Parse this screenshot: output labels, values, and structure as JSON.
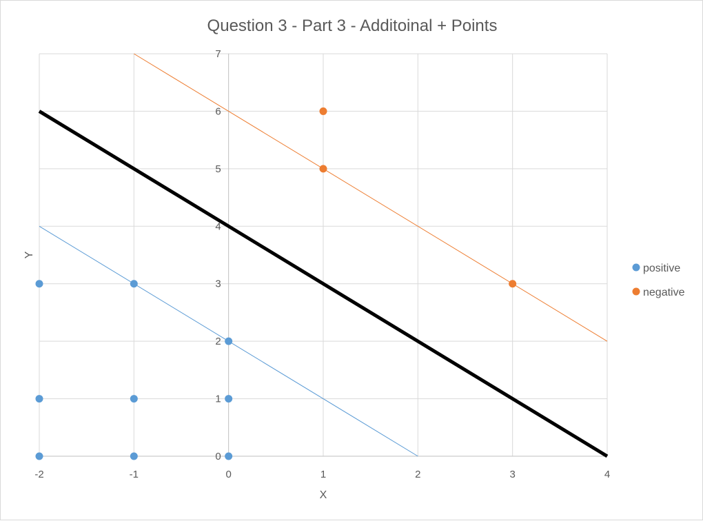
{
  "chart_data": {
    "type": "scatter",
    "title": "Question 3 - Part 3 - Additoinal + Points",
    "xlabel": "X",
    "ylabel": "Y",
    "xlim": [
      -2,
      4
    ],
    "ylim": [
      0,
      7
    ],
    "x_ticks": [
      "-2",
      "-1",
      "0",
      "1",
      "2",
      "3",
      "4"
    ],
    "y_ticks": [
      "0",
      "1",
      "2",
      "3",
      "4",
      "5",
      "6",
      "7"
    ],
    "grid": true,
    "legend_position": "right",
    "series": [
      {
        "name": "positive",
        "color": "#5b9bd5",
        "points": [
          {
            "x": -2,
            "y": 3
          },
          {
            "x": -1,
            "y": 3
          },
          {
            "x": 0,
            "y": 2
          },
          {
            "x": -2,
            "y": 1
          },
          {
            "x": -1,
            "y": 1
          },
          {
            "x": 0,
            "y": 1
          },
          {
            "x": -2,
            "y": 0
          },
          {
            "x": -1,
            "y": 0
          },
          {
            "x": 0,
            "y": 0
          }
        ]
      },
      {
        "name": "negative",
        "color": "#ed7d31",
        "points": [
          {
            "x": 1,
            "y": 6
          },
          {
            "x": 1,
            "y": 5
          },
          {
            "x": 3,
            "y": 3
          }
        ]
      }
    ],
    "lines": [
      {
        "color": "#000000",
        "from": {
          "x": -2,
          "y": 6
        },
        "to": {
          "x": 4,
          "y": 0
        }
      },
      {
        "color": "#5b9bd5",
        "from": {
          "x": -2,
          "y": 4
        },
        "to": {
          "x": 2,
          "y": 0
        }
      },
      {
        "color": "#ed7d31",
        "from": {
          "x": -1,
          "y": 7
        },
        "to": {
          "x": 4,
          "y": 2
        }
      }
    ]
  }
}
